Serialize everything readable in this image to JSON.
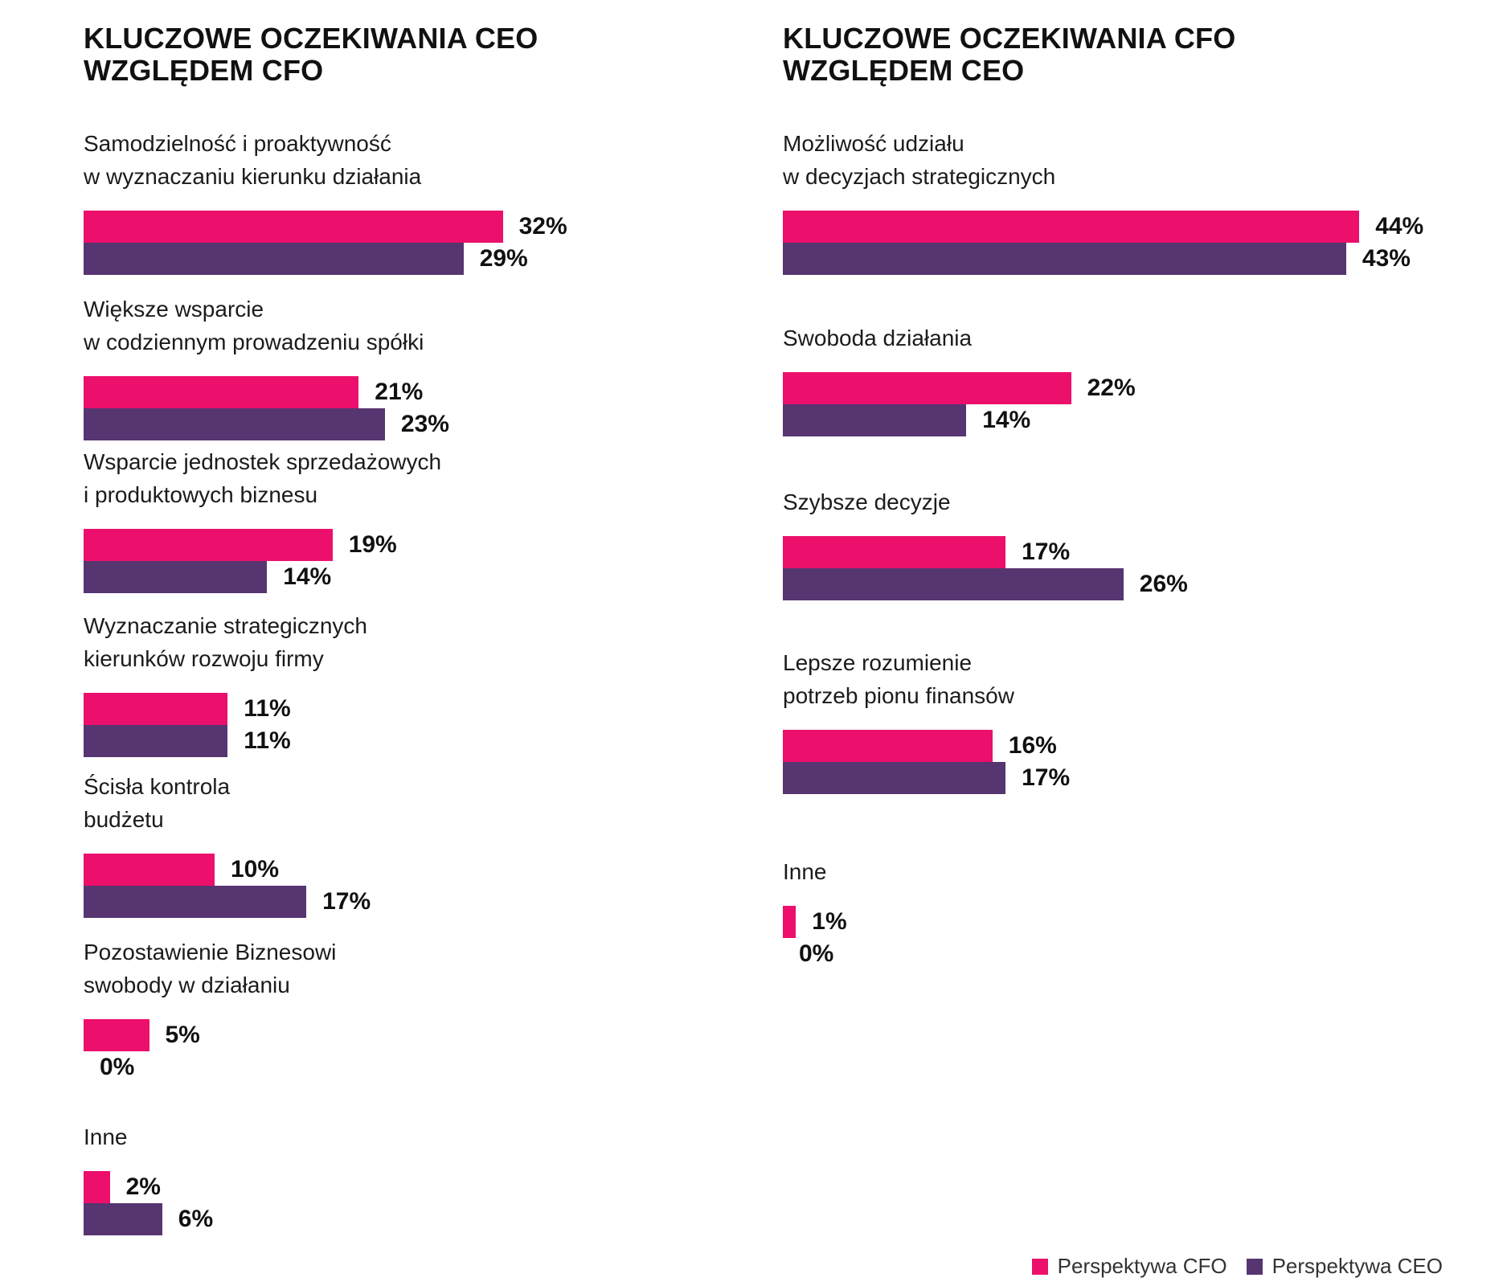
{
  "colors": {
    "cfo": "#ec0f6b",
    "ceo": "#573570"
  },
  "legend": {
    "cfo": "Perspektywa CFO",
    "ceo": "Perspektywa CEO"
  },
  "chart_data": [
    {
      "type": "bar",
      "orientation": "horizontal",
      "title": "KLUCZOWE OCZEKIWANIA CEO\nWZGLĘDEM CFO",
      "categories": [
        "Samodzielność i proaktywność\nw wyznaczaniu kierunku działania",
        "Większe wsparcie\nw codziennym prowadzeniu spółki",
        "Wsparcie jednostek sprzedażowych\ni produktowych biznesu",
        "Wyznaczanie strategicznych\nkierunków rozwoju firmy",
        "Ścisła kontrola\nbudżetu",
        "Pozostawienie Biznesowi\nswobody w działaniu",
        "Inne"
      ],
      "series": [
        {
          "name": "Perspektywa CFO",
          "values": [
            32,
            21,
            19,
            11,
            10,
            5,
            2
          ],
          "labels": [
            "32%",
            "21%",
            "19%",
            "11%",
            "10%",
            "5%",
            "2%"
          ]
        },
        {
          "name": "Perspektywa CEO",
          "values": [
            29,
            23,
            14,
            11,
            17,
            0,
            6
          ],
          "labels": [
            "29%",
            "23%",
            "14%",
            "11%",
            "17%",
            "0%",
            "6%"
          ]
        }
      ],
      "xlim": [
        0,
        50
      ]
    },
    {
      "type": "bar",
      "orientation": "horizontal",
      "title": "KLUCZOWE OCZEKIWANIA CFO\nWZGLĘDEM CEO",
      "categories": [
        "Możliwość udziału\nw decyzjach strategicznych",
        "Swoboda działania",
        "Szybsze decyzje",
        "Lepsze rozumienie\npotrzeb pionu finansów",
        "Inne"
      ],
      "series": [
        {
          "name": "Perspektywa CFO",
          "values": [
            44,
            22,
            17,
            16,
            1
          ],
          "labels": [
            "44%",
            "22%",
            "17%",
            "16%",
            "1%"
          ]
        },
        {
          "name": "Perspektywa CEO",
          "values": [
            43,
            14,
            26,
            17,
            0
          ],
          "labels": [
            "43%",
            "14%",
            "26%",
            "17%",
            "0%"
          ]
        }
      ],
      "xlim": [
        0,
        50
      ]
    }
  ]
}
